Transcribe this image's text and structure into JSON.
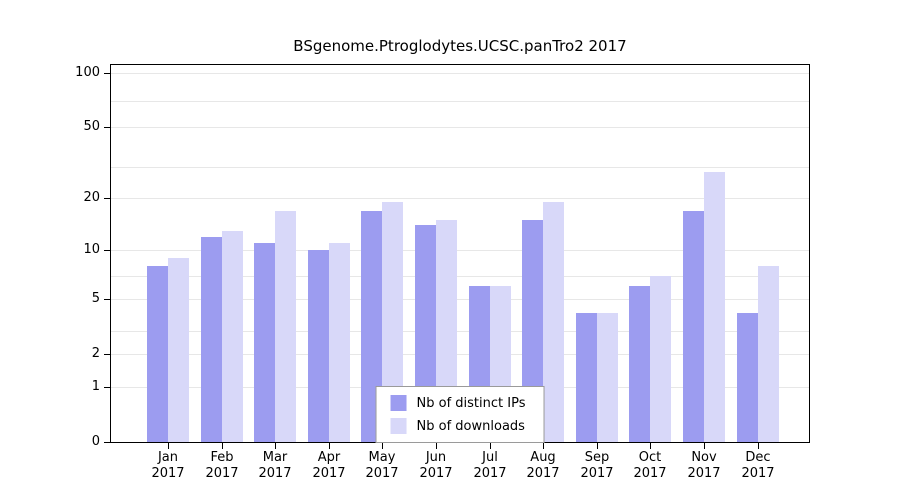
{
  "title": "BSgenome.Ptroglodytes.UCSC.panTro2 2017",
  "chart_data": {
    "type": "bar",
    "title": "BSgenome.Ptroglodytes.UCSC.panTro2 2017",
    "categories": [
      "Jan",
      "Feb",
      "Mar",
      "Apr",
      "May",
      "Jun",
      "Jul",
      "Aug",
      "Sep",
      "Oct",
      "Nov",
      "Dec"
    ],
    "year_label": "2017",
    "series": [
      {
        "name": "Nb of distinct IPs",
        "color": "#9c9cf0",
        "values": [
          8,
          12,
          11,
          10,
          17,
          14,
          6,
          15,
          4,
          6,
          17,
          4
        ]
      },
      {
        "name": "Nb of downloads",
        "color": "#d8d8f9",
        "values": [
          9,
          13,
          17,
          11,
          19,
          15,
          6,
          19,
          4,
          7,
          28,
          8
        ]
      }
    ],
    "yticks": [
      0,
      1,
      2,
      5,
      10,
      20,
      50,
      100
    ],
    "gridlines": [
      1,
      2,
      3,
      5,
      7,
      10,
      20,
      30,
      50,
      70,
      100
    ],
    "scale": "log1p",
    "ylim": [
      0,
      110
    ],
    "grid_color": "#e7e7e7",
    "axis_color": "#000000",
    "legend_position": "bottom-center"
  }
}
